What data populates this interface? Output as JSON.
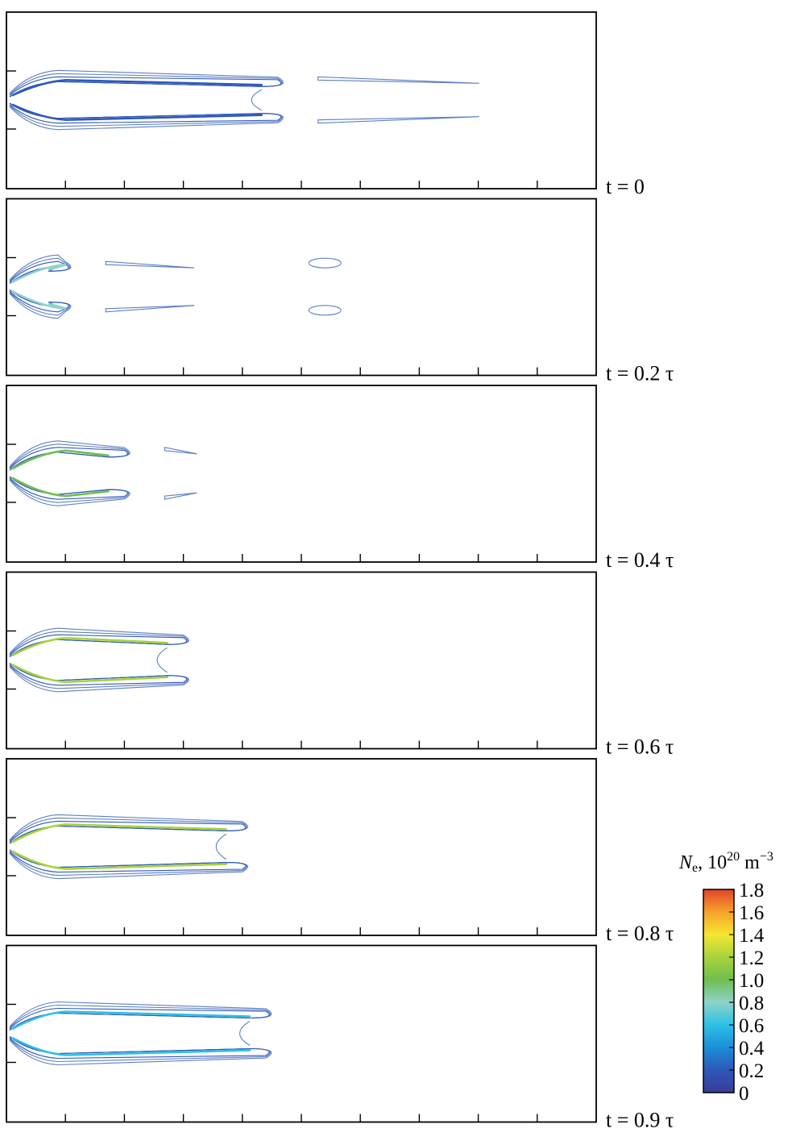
{
  "chart_data": {
    "type": "contour",
    "colorbar": {
      "title_symbol": "N",
      "title_subscript": "e",
      "title_units": ", 10",
      "title_exp": "20",
      "title_units2": " m",
      "title_exp2": "−3",
      "min": 0,
      "max": 1.8,
      "tick_labels": [
        "1.8",
        "1.6",
        "1.4",
        "1.2",
        "1.0",
        "0.8",
        "0.6",
        "0.4",
        "0.2",
        "0"
      ],
      "colors": [
        "#3a3d97",
        "#2f58b8",
        "#1c8fd8",
        "#2cc0e6",
        "#8fd3c8",
        "#6fbf4e",
        "#a7d33b",
        "#f5e630",
        "#f6a228",
        "#e2452a"
      ]
    },
    "panels": [
      {
        "label": "t = 0",
        "t": 0,
        "tail": 1.0,
        "ends": "flared",
        "blobs": false,
        "core": 0.15,
        "front": 4.6,
        "gap": 0.12
      },
      {
        "label": "t = 0.2 τ",
        "t": 0.2,
        "tail": 0.55,
        "ends": "broken",
        "blobs": true,
        "core": 0.85,
        "front": 1.0,
        "gap": 0.55
      },
      {
        "label": "t = 0.4 τ",
        "t": 0.4,
        "tail": 0.2,
        "ends": "broken",
        "blobs": false,
        "core": 1.0,
        "front": 2.0,
        "gap": 0.7
      },
      {
        "label": "t = 0.6 τ",
        "t": 0.6,
        "tail": 0.0,
        "ends": "closed",
        "blobs": false,
        "core": 1.1,
        "front": 3.0,
        "gap": 0.55
      },
      {
        "label": "t = 0.8 τ",
        "t": 0.8,
        "tail": 0.0,
        "ends": "closed",
        "blobs": false,
        "core": 1.15,
        "front": 4.0,
        "gap": 0.6
      },
      {
        "label": "t = 0.9 τ",
        "t": 0.9,
        "tail": 0.0,
        "ends": "closed",
        "blobs": false,
        "core": 0.5,
        "front": 4.4,
        "gap": 0.5
      }
    ],
    "x_ticks": 10,
    "y_ticks": 2
  }
}
